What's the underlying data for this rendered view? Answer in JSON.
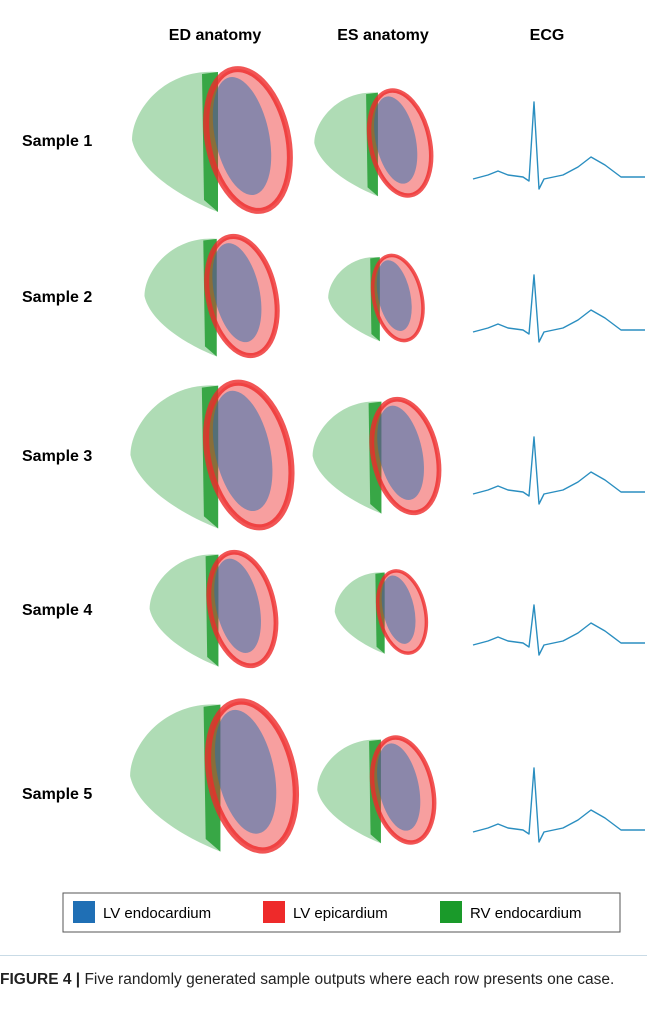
{
  "columns": [
    "ED anatomy",
    "ES anatomy",
    "ECG"
  ],
  "rows": [
    "Sample 1",
    "Sample 2",
    "Sample 3",
    "Sample 4",
    "Sample 5"
  ],
  "legend": [
    {
      "label": "LV endocardium",
      "color": "#1f6fb5"
    },
    {
      "label": "LV epicardium",
      "color": "#ee2a2a"
    },
    {
      "label": "RV endocardium",
      "color": "#1a9a2a"
    }
  ],
  "caption": {
    "label": "FIGURE 4 |",
    "text": "Five randomly generated sample outputs where each row presents one case."
  }
}
